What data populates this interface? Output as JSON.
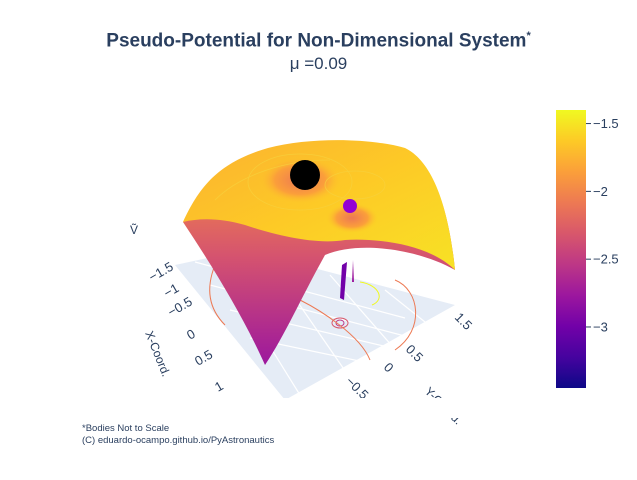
{
  "title": {
    "main": "Pseudo-Potential for Non-Dimensional System",
    "marker": "*",
    "subtitle": "μ =0.09"
  },
  "footnote": {
    "line1": "*Bodies Not to Scale",
    "line2": "(C) eduardo-ocampo.github.io/PyAstronautics"
  },
  "colors": {
    "scale": [
      "#0d0887",
      "#46039f",
      "#7201a8",
      "#9c179e",
      "#bd3786",
      "#d8576b",
      "#ed7953",
      "#fb9f3a",
      "#fdca26",
      "#f0f921"
    ],
    "grid_bg": "#e5ecf6",
    "primary_body": "#000000",
    "secondary_body": "#9400d3"
  },
  "chart_data": {
    "type": "surface",
    "title": "Pseudo-Potential for Non-Dimensional System",
    "subtitle": "μ =0.09",
    "z_label": "Ṽ",
    "x_axis": {
      "label": "X-Coord.",
      "ticks": [
        "−1.5",
        "−1",
        "−0.5",
        "0",
        "0.5",
        "1"
      ]
    },
    "y_axis": {
      "label": "Y-Coord.",
      "ticks": [
        "−0.5",
        "0",
        "0.5",
        "1.5"
      ]
    },
    "colorbar": {
      "range": [
        -3.45,
        -1.4
      ],
      "ticks": [
        {
          "value": -1.5,
          "label": "−1.5"
        },
        {
          "value": -2,
          "label": "−2"
        },
        {
          "value": -2.5,
          "label": "−2.5"
        },
        {
          "value": -3,
          "label": "−3"
        }
      ]
    },
    "mu": 0.09,
    "bodies": [
      {
        "name": "primary",
        "color": "#000000"
      },
      {
        "name": "secondary",
        "color": "#9400d3"
      }
    ]
  }
}
